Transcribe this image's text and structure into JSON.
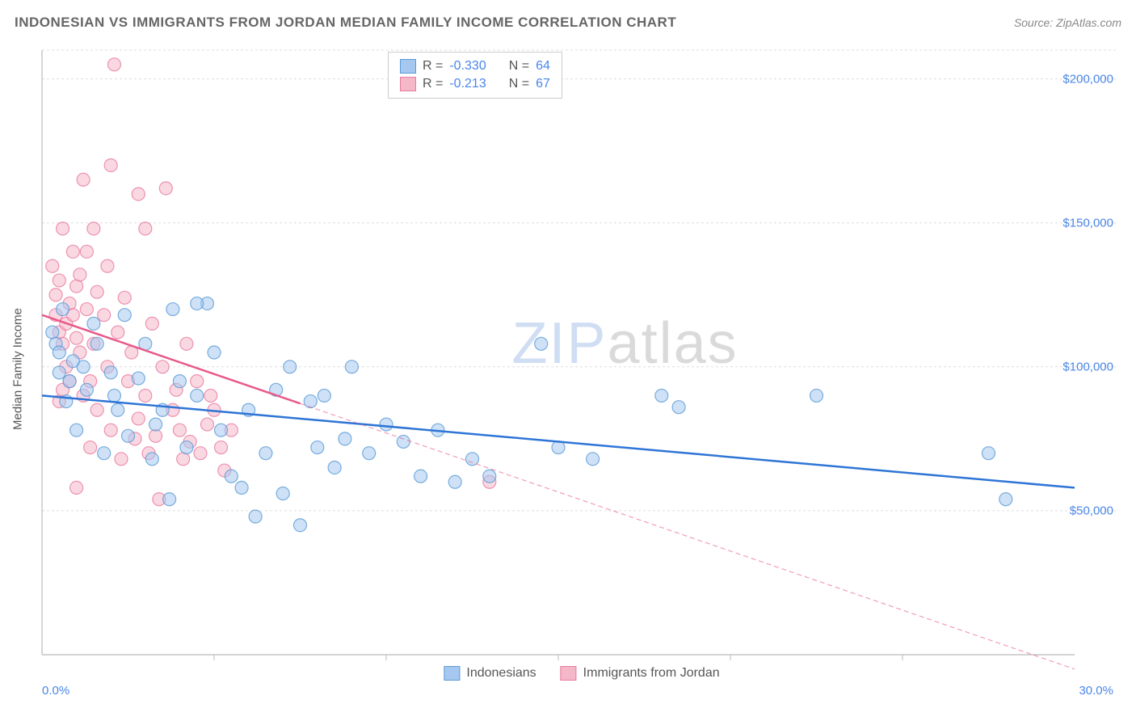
{
  "header": {
    "title": "INDONESIAN VS IMMIGRANTS FROM JORDAN MEDIAN FAMILY INCOME CORRELATION CHART",
    "source": "Source: ZipAtlas.com"
  },
  "chart": {
    "type": "scatter",
    "ylabel": "Median Family Income",
    "xlim": [
      0,
      30
    ],
    "ylim": [
      0,
      210000
    ],
    "yticks": [
      50000,
      100000,
      150000,
      200000
    ],
    "ytick_labels": [
      "$50,000",
      "$100,000",
      "$150,000",
      "$200,000"
    ],
    "xtick_left": "0.0%",
    "xtick_right": "30.0%",
    "xticks_minor": [
      5,
      10,
      15,
      20,
      25
    ],
    "grid_color": "#dddddd",
    "axis_color": "#bbbbbb",
    "background_color": "#ffffff",
    "tick_label_color": "#4a86e8",
    "axis_label_color": "#555555",
    "marker_radius": 8,
    "marker_opacity": 0.55,
    "marker_stroke_width": 1.2,
    "line_width": 2.5,
    "dash_pattern": "6 4",
    "watermark": {
      "prefix": "ZIP",
      "suffix": "atlas"
    }
  },
  "series": [
    {
      "name": "Indonesians",
      "color_fill": "#a6c8f0",
      "color_stroke": "#5b9bd5",
      "line_color": "#2e75d6",
      "R": "-0.330",
      "N": "64",
      "trend": {
        "x1": 0,
        "y1": 90000,
        "x2": 30,
        "y2": 58000,
        "solid_until": 30
      },
      "points": [
        [
          0.3,
          112000
        ],
        [
          0.4,
          108000
        ],
        [
          0.5,
          105000
        ],
        [
          0.5,
          98000
        ],
        [
          0.6,
          120000
        ],
        [
          0.7,
          88000
        ],
        [
          0.8,
          95000
        ],
        [
          1.0,
          78000
        ],
        [
          1.2,
          100000
        ],
        [
          1.3,
          92000
        ],
        [
          1.5,
          115000
        ],
        [
          1.8,
          70000
        ],
        [
          2.0,
          98000
        ],
        [
          2.2,
          85000
        ],
        [
          2.4,
          118000
        ],
        [
          2.5,
          76000
        ],
        [
          2.8,
          96000
        ],
        [
          3.0,
          108000
        ],
        [
          3.2,
          68000
        ],
        [
          3.5,
          85000
        ],
        [
          3.7,
          54000
        ],
        [
          3.8,
          120000
        ],
        [
          4.0,
          95000
        ],
        [
          4.2,
          72000
        ],
        [
          4.5,
          90000
        ],
        [
          4.8,
          122000
        ],
        [
          5.0,
          105000
        ],
        [
          5.2,
          78000
        ],
        [
          5.5,
          62000
        ],
        [
          5.8,
          58000
        ],
        [
          6.0,
          85000
        ],
        [
          6.2,
          48000
        ],
        [
          6.5,
          70000
        ],
        [
          6.8,
          92000
        ],
        [
          7.0,
          56000
        ],
        [
          7.2,
          100000
        ],
        [
          7.5,
          45000
        ],
        [
          7.8,
          88000
        ],
        [
          8.0,
          72000
        ],
        [
          8.2,
          90000
        ],
        [
          8.5,
          65000
        ],
        [
          8.8,
          75000
        ],
        [
          9.0,
          100000
        ],
        [
          9.5,
          70000
        ],
        [
          10.0,
          80000
        ],
        [
          10.5,
          74000
        ],
        [
          11.0,
          62000
        ],
        [
          11.5,
          78000
        ],
        [
          12.0,
          60000
        ],
        [
          12.5,
          68000
        ],
        [
          13.0,
          62000
        ],
        [
          14.5,
          108000
        ],
        [
          15.0,
          72000
        ],
        [
          16.0,
          68000
        ],
        [
          18.0,
          90000
        ],
        [
          18.5,
          86000
        ],
        [
          22.5,
          90000
        ],
        [
          27.5,
          70000
        ],
        [
          28.0,
          54000
        ],
        [
          4.5,
          122000
        ],
        [
          3.3,
          80000
        ],
        [
          2.1,
          90000
        ],
        [
          1.6,
          108000
        ],
        [
          0.9,
          102000
        ]
      ]
    },
    {
      "name": "Immigrants from Jordan",
      "color_fill": "#f5b8c8",
      "color_stroke": "#e87ba0",
      "line_color": "#e85a8a",
      "R": "-0.213",
      "N": "67",
      "trend": {
        "x1": 0,
        "y1": 118000,
        "x2": 30,
        "y2": -5000,
        "solid_until": 7.5
      },
      "points": [
        [
          0.3,
          135000
        ],
        [
          0.4,
          118000
        ],
        [
          0.4,
          125000
        ],
        [
          0.5,
          112000
        ],
        [
          0.5,
          130000
        ],
        [
          0.6,
          108000
        ],
        [
          0.6,
          148000
        ],
        [
          0.7,
          115000
        ],
        [
          0.7,
          100000
        ],
        [
          0.8,
          122000
        ],
        [
          0.8,
          95000
        ],
        [
          0.9,
          140000
        ],
        [
          1.0,
          110000
        ],
        [
          1.0,
          128000
        ],
        [
          1.1,
          105000
        ],
        [
          1.2,
          90000
        ],
        [
          1.2,
          165000
        ],
        [
          1.3,
          120000
        ],
        [
          1.4,
          95000
        ],
        [
          1.5,
          108000
        ],
        [
          1.5,
          148000
        ],
        [
          1.6,
          85000
        ],
        [
          1.8,
          118000
        ],
        [
          1.9,
          100000
        ],
        [
          2.0,
          78000
        ],
        [
          2.0,
          170000
        ],
        [
          2.1,
          205000
        ],
        [
          2.2,
          112000
        ],
        [
          2.3,
          68000
        ],
        [
          2.5,
          95000
        ],
        [
          2.6,
          105000
        ],
        [
          2.8,
          82000
        ],
        [
          2.8,
          160000
        ],
        [
          3.0,
          90000
        ],
        [
          3.0,
          148000
        ],
        [
          3.2,
          115000
        ],
        [
          3.3,
          76000
        ],
        [
          3.5,
          100000
        ],
        [
          3.6,
          162000
        ],
        [
          3.8,
          85000
        ],
        [
          4.0,
          78000
        ],
        [
          4.2,
          108000
        ],
        [
          4.3,
          74000
        ],
        [
          4.5,
          95000
        ],
        [
          4.8,
          80000
        ],
        [
          5.0,
          85000
        ],
        [
          5.2,
          72000
        ],
        [
          5.5,
          78000
        ],
        [
          1.0,
          58000
        ],
        [
          1.4,
          72000
        ],
        [
          0.5,
          88000
        ],
        [
          0.6,
          92000
        ],
        [
          0.9,
          118000
        ],
        [
          1.1,
          132000
        ],
        [
          1.3,
          140000
        ],
        [
          1.6,
          126000
        ],
        [
          1.9,
          135000
        ],
        [
          2.4,
          124000
        ],
        [
          2.7,
          75000
        ],
        [
          3.1,
          70000
        ],
        [
          3.4,
          54000
        ],
        [
          3.9,
          92000
        ],
        [
          4.1,
          68000
        ],
        [
          4.6,
          70000
        ],
        [
          4.9,
          90000
        ],
        [
          5.3,
          64000
        ],
        [
          13.0,
          60000
        ]
      ]
    }
  ],
  "legend": {
    "series1": "Indonesians",
    "series2": "Immigrants from Jordan"
  },
  "stats_labels": {
    "r": "R =",
    "n": "N ="
  }
}
